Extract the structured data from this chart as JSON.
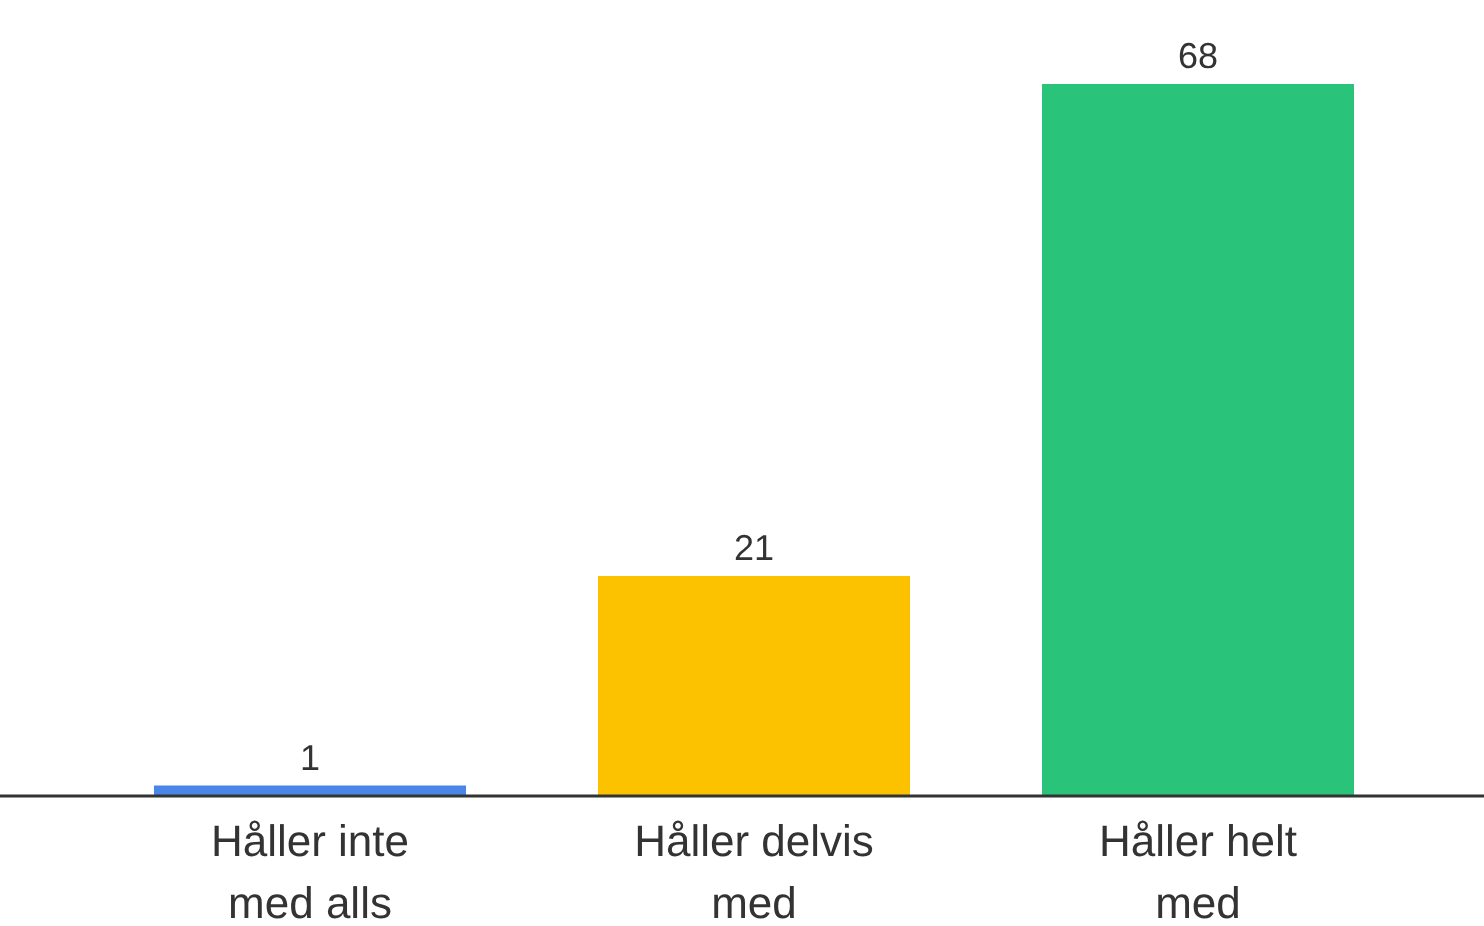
{
  "chart_data": {
    "type": "bar",
    "categories": [
      "Håller inte med alls",
      "Håller delvis med",
      "Håller helt med"
    ],
    "values": [
      1,
      21,
      68
    ],
    "colors": [
      "#4a86e8",
      "#fcc200",
      "#29c47a"
    ],
    "data_labels": true
  }
}
